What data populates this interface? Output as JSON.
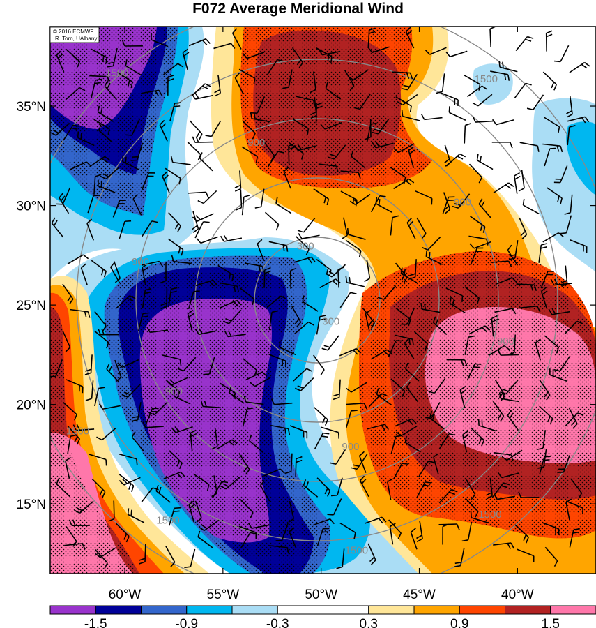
{
  "title": "F072 Average Meridional Wind",
  "credit": {
    "line1": "© 2016 ECMWF",
    "line2": "R. Torn, UAlbany"
  },
  "map": {
    "lon_range": [
      -63.8,
      -36.0
    ],
    "lat_range": [
      11.5,
      39.0
    ],
    "lat_ticks": [
      {
        "value": 35,
        "label": "35°N"
      },
      {
        "value": 30,
        "label": "30°N"
      },
      {
        "value": 25,
        "label": "25°N"
      },
      {
        "value": 20,
        "label": "20°N"
      },
      {
        "value": 15,
        "label": "15°N"
      }
    ],
    "lon_ticks": [
      {
        "value": -60,
        "label": "60°W"
      },
      {
        "value": -55,
        "label": "55°W"
      },
      {
        "value": -50,
        "label": "50°W"
      },
      {
        "value": -45,
        "label": "45°W"
      },
      {
        "value": -40,
        "label": "40°W"
      }
    ]
  },
  "colorbar": {
    "colors": [
      "#9933cc",
      "#000099",
      "#3366cc",
      "#00b7f0",
      "#aaddf5",
      "#ffffff",
      "#ffffff",
      "#ffe699",
      "#ffa500",
      "#ff4500",
      "#b22222",
      "#ff77aa"
    ],
    "labels": [
      "-1.5",
      "-0.9",
      "-0.3",
      "0.3",
      "0.9",
      "1.5"
    ]
  },
  "range_rings": {
    "color": "#888888",
    "labels": [
      {
        "text": "1500",
        "lon": -60.4,
        "lat": 36.5
      },
      {
        "text": "1500",
        "lon": -41.6,
        "lat": 36.2
      },
      {
        "text": "900",
        "lon": -53.3,
        "lat": 33.0
      },
      {
        "text": "900",
        "lon": -42.8,
        "lat": 30.0
      },
      {
        "text": "900",
        "lon": -59.2,
        "lat": 27.0
      },
      {
        "text": "300",
        "lon": -50.8,
        "lat": 27.8
      },
      {
        "text": "300",
        "lon": -49.5,
        "lat": 24.0
      },
      {
        "text": "900",
        "lon": -40.6,
        "lat": 23.0
      },
      {
        "text": "900",
        "lon": -57.5,
        "lat": 20.5
      },
      {
        "text": "900",
        "lon": -48.5,
        "lat": 17.7
      },
      {
        "text": "1500",
        "lon": -62.4,
        "lat": 18.5
      },
      {
        "text": "1500",
        "lon": -57.8,
        "lat": 14.0
      },
      {
        "text": "1500",
        "lon": -48.2,
        "lat": 12.5
      },
      {
        "text": "1500",
        "lon": -41.4,
        "lat": 14.3
      }
    ]
  }
}
